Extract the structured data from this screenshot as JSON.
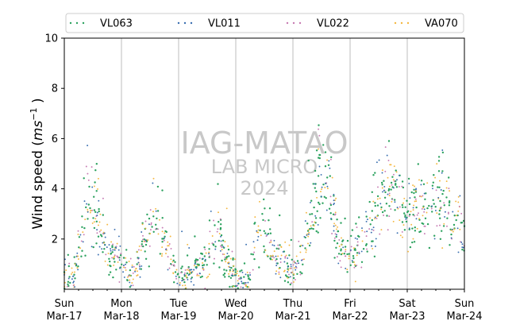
{
  "chart_data": {
    "type": "scatter",
    "ylabel_prefix": "Wind speed (",
    "ylabel_unit_base": "ms",
    "ylabel_unit_exp": "−1",
    "ylabel_suffix": " )",
    "ylim": [
      0,
      10
    ],
    "yticks": [
      2,
      4,
      6,
      8,
      10
    ],
    "x_start": "2024-03-17T00:00",
    "x_end": "2024-03-24T00:00",
    "xticks": [
      {
        "day": "Sun",
        "date": "Mar-17"
      },
      {
        "day": "Mon",
        "date": "Mar-18"
      },
      {
        "day": "Tue",
        "date": "Mar-19"
      },
      {
        "day": "Wed",
        "date": "Mar-20"
      },
      {
        "day": "Thu",
        "date": "Mar-21"
      },
      {
        "day": "Fri",
        "date": "Mar-22"
      },
      {
        "day": "Sat",
        "date": "Mar-23"
      },
      {
        "day": "Sun",
        "date": "Mar-24"
      }
    ],
    "grid": "vertical at day boundaries",
    "legend_position": "top, horizontal, outside plot",
    "series": [
      {
        "name": "VL063",
        "color": "#2ca25f",
        "daily_profile": [
          {
            "time": "2024-03-17T00:00",
            "y": 0.6
          },
          {
            "time": "2024-03-17T04:00",
            "y": 0.4
          },
          {
            "time": "2024-03-17T08:00",
            "y": 2.8
          },
          {
            "time": "2024-03-17T13:00",
            "y": 3.6
          },
          {
            "time": "2024-03-17T18:00",
            "y": 1.5
          },
          {
            "time": "2024-03-18T00:00",
            "y": 1.1
          },
          {
            "time": "2024-03-18T04:00",
            "y": 0.4
          },
          {
            "time": "2024-03-18T08:00",
            "y": 1.3
          },
          {
            "time": "2024-03-18T13:00",
            "y": 2.6
          },
          {
            "time": "2024-03-18T18:00",
            "y": 1.8
          },
          {
            "time": "2024-03-19T00:00",
            "y": 0.4
          },
          {
            "time": "2024-03-19T06:00",
            "y": 0.6
          },
          {
            "time": "2024-03-19T12:00",
            "y": 1.3
          },
          {
            "time": "2024-03-19T16:00",
            "y": 2.6
          },
          {
            "time": "2024-03-19T20:00",
            "y": 1.1
          },
          {
            "time": "2024-03-20T00:00",
            "y": 0.5
          },
          {
            "time": "2024-03-20T06:00",
            "y": 0.4
          },
          {
            "time": "2024-03-20T08:00",
            "y": 2.3
          },
          {
            "time": "2024-03-20T13:00",
            "y": 2.3
          },
          {
            "time": "2024-03-20T18:00",
            "y": 1.1
          },
          {
            "time": "2024-03-21T00:00",
            "y": 0.6
          },
          {
            "time": "2024-03-21T06:00",
            "y": 2.0
          },
          {
            "time": "2024-03-21T11:00",
            "y": 4.5
          },
          {
            "time": "2024-03-21T16:00",
            "y": 3.6
          },
          {
            "time": "2024-03-21T20:00",
            "y": 1.4
          },
          {
            "time": "2024-03-22T00:00",
            "y": 1.4
          },
          {
            "time": "2024-03-22T06:00",
            "y": 2.0
          },
          {
            "time": "2024-03-22T12:00",
            "y": 3.5
          },
          {
            "time": "2024-03-22T18:00",
            "y": 4.0
          },
          {
            "time": "2024-03-23T00:00",
            "y": 3.0
          },
          {
            "time": "2024-03-23T08:00",
            "y": 3.3
          },
          {
            "time": "2024-03-23T14:00",
            "y": 3.6
          },
          {
            "time": "2024-03-23T20:00",
            "y": 2.6
          },
          {
            "time": "2024-03-24T00:00",
            "y": 2.3
          }
        ]
      },
      {
        "name": "VL011",
        "color": "#3a6fb0"
      },
      {
        "name": "VL022",
        "color": "#c77bb3"
      },
      {
        "name": "VA070",
        "color": "#f5b841"
      }
    ]
  },
  "watermark": {
    "line1": "IAG-MATAO",
    "line2": "LAB MICRO",
    "line3": "2024"
  }
}
